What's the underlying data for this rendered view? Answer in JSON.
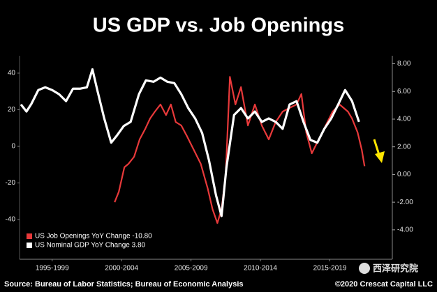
{
  "chart_data": {
    "type": "line",
    "title": "US GDP vs. Job Openings",
    "xlim": [
      1995.15,
      2022.0
    ],
    "xticks": [
      {
        "value": 1997.5,
        "label": "1995-1999"
      },
      {
        "value": 2002.5,
        "label": "2000-2004"
      },
      {
        "value": 2007.5,
        "label": "2005-2009"
      },
      {
        "value": 2012.5,
        "label": "2010-2014"
      },
      {
        "value": 2017.5,
        "label": "2015-2019"
      }
    ],
    "ylim": [
      -59,
      49.5
    ],
    "yticks": [
      -40,
      -20,
      0,
      20,
      40
    ],
    "y2lim": [
      -5.77,
      8.58
    ],
    "y2ticks": [
      {
        "value": -4,
        "label": "-4.00"
      },
      {
        "value": -2,
        "label": "-2.00"
      },
      {
        "value": 0,
        "label": "0.00"
      },
      {
        "value": 2,
        "label": "2.00"
      },
      {
        "value": 4,
        "label": "4.00"
      },
      {
        "value": 6,
        "label": "6.00"
      },
      {
        "value": 8,
        "label": "8.00"
      }
    ],
    "legend": "lower left",
    "series": [
      {
        "name": "US Job Openings YoY Change -10.80",
        "color": "#e8393a",
        "axis": "y",
        "x": [
          2002.0,
          2002.3,
          2002.7,
          2003.0,
          2003.4,
          2003.8,
          2004.2,
          2004.55,
          2004.9,
          2005.3,
          2005.7,
          2006.05,
          2006.4,
          2006.8,
          2007.2,
          2007.7,
          2008.2,
          2008.7,
          2009.05,
          2009.4,
          2009.7,
          2010.0,
          2010.3,
          2010.7,
          2011.1,
          2011.6,
          2012.1,
          2012.6,
          2013.1,
          2013.6,
          2014.1,
          2014.6,
          2015.1,
          2015.45,
          2015.8,
          2016.2,
          2016.7,
          2017.2,
          2017.7,
          2018.2,
          2018.8,
          2019.1,
          2019.5,
          2019.8,
          2020.0
        ],
        "values": [
          -30.5,
          -24.8,
          -11.4,
          -9.5,
          -5.7,
          3.8,
          9.5,
          15.2,
          19,
          22.9,
          17.1,
          22.9,
          13.3,
          11.4,
          5.7,
          -1.9,
          -9.5,
          -22.9,
          -34.3,
          -41.9,
          -34.3,
          -15.2,
          38,
          22.9,
          32.4,
          11.4,
          22.9,
          11.4,
          3.8,
          13.3,
          19,
          21,
          22.9,
          28.6,
          7.6,
          -3.8,
          3.8,
          11.4,
          19,
          22.9,
          19,
          15.2,
          7.6,
          -1.9,
          -10.8
        ]
      },
      {
        "name": "US Nominal GDP YoY Change 3.80",
        "color": "#ffffff",
        "axis": "y2",
        "x": [
          1995.25,
          1995.65,
          1996.0,
          1996.5,
          1997.0,
          1997.5,
          1998.0,
          1998.5,
          1999.0,
          1999.5,
          2000.0,
          2000.4,
          2000.75,
          2001.25,
          2001.75,
          2002.15,
          2002.65,
          2003.15,
          2003.75,
          2004.25,
          2004.8,
          2005.3,
          2005.8,
          2006.3,
          2006.8,
          2007.3,
          2007.8,
          2008.3,
          2008.8,
          2009.3,
          2009.7,
          2010.05,
          2010.6,
          2011.1,
          2011.6,
          2012.1,
          2012.6,
          2013.1,
          2013.6,
          2014.1,
          2014.6,
          2015.1,
          2015.6,
          2016.1,
          2016.6,
          2017.1,
          2017.6,
          2018.1,
          2018.6,
          2019.1,
          2019.6
        ],
        "values": [
          5.06,
          4.55,
          5.1,
          6.1,
          6.3,
          6.1,
          5.8,
          5.3,
          6.2,
          6.2,
          6.3,
          7.6,
          6.1,
          4.05,
          2.3,
          2.8,
          3.5,
          3.8,
          5.8,
          6.8,
          6.7,
          7.0,
          6.7,
          6.6,
          5.8,
          4.8,
          4.05,
          3.0,
          1.0,
          -1.5,
          -3.0,
          0.5,
          4.3,
          4.8,
          4.05,
          4.55,
          3.8,
          4.05,
          3.8,
          3.3,
          5.06,
          5.3,
          3.8,
          2.5,
          2.3,
          3.3,
          4.05,
          5.06,
          6.1,
          5.3,
          3.8
        ]
      }
    ],
    "source": "Source: Bureau of Labor Statistics; Bureau of Economic Analysis",
    "copyright": "©2020 Crescat Capital LLC",
    "watermark": "西泽研究院"
  }
}
